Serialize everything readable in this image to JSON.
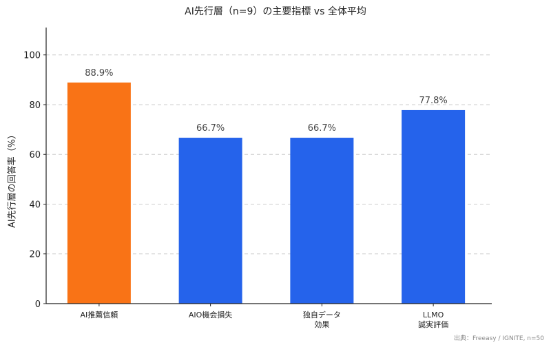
{
  "chart_data": {
    "type": "bar",
    "title": "AI先行層（n=9）の主要指標 vs 全体平均",
    "xlabel": "",
    "ylabel": "AI先行層の回答率（%）",
    "categories": [
      "AI推薦信頼",
      "AIO機会損失",
      "独自データ\n効果",
      "LLMO\n誠実評価"
    ],
    "values": [
      88.9,
      66.7,
      66.7,
      77.8
    ],
    "value_labels": [
      "88.9%",
      "66.7%",
      "66.7%",
      "77.8%"
    ],
    "colors": [
      "#F97316",
      "#2563EB",
      "#2563EB",
      "#2563EB"
    ],
    "ylim": [
      0,
      111
    ],
    "yticks": [
      0,
      20,
      40,
      60,
      80,
      100
    ],
    "grid": {
      "y": true,
      "style": "dashed",
      "color": "#cccccc"
    },
    "legend": null,
    "annotations": [
      "出典：Freeasy / IGNITE, n=50"
    ]
  },
  "header": {
    "title": "AI先行層（n=9）の主要指標 vs 全体平均"
  },
  "axes": {
    "ylabel": "AI先行層の回答率（%）"
  },
  "footer": {
    "source": "出典：Freeasy / IGNITE, n=50"
  }
}
